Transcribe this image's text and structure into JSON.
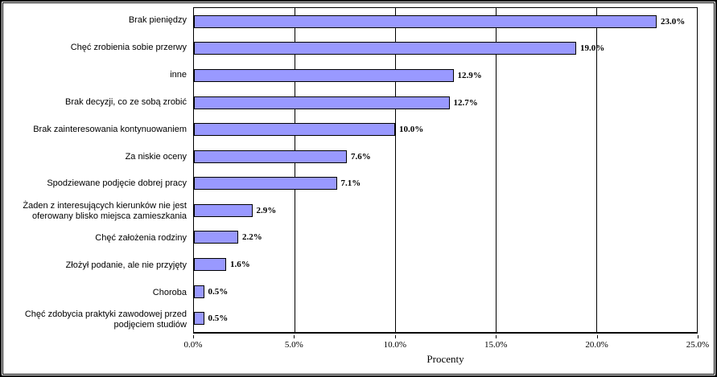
{
  "chart_data": {
    "type": "bar",
    "orientation": "horizontal",
    "title": "",
    "xlabel": "Procenty",
    "categories": [
      "Brak pieniędzy",
      "Chęć zrobienia sobie przerwy",
      "inne",
      "Brak decyzji, co ze sobą zrobić",
      "Brak zainteresowania kontynuowaniem",
      "Za niskie oceny",
      "Spodziewane podjęcie dobrej pracy",
      "Żaden z interesujących kierunków nie jest oferowany blisko miejsca zamieszkania",
      "Chęć założenia rodziny",
      "Złożył podanie, ale nie przyjęty",
      "Choroba",
      "Chęć zdobycia praktyki zawodowej przed podjęciem studiów"
    ],
    "values": [
      23.0,
      19.0,
      12.9,
      12.7,
      10.0,
      7.6,
      7.1,
      2.9,
      2.2,
      1.6,
      0.5,
      0.5
    ],
    "value_labels": [
      "23.0%",
      "19.0%",
      "12.9%",
      "12.7%",
      "10.0%",
      "7.6%",
      "7.1%",
      "2.9%",
      "2.2%",
      "1.6%",
      "0.5%",
      "0.5%"
    ],
    "xlim": [
      0,
      25
    ],
    "x_ticks": [
      {
        "value": 0,
        "label": "0.0%"
      },
      {
        "value": 5,
        "label": "5.0%"
      },
      {
        "value": 10,
        "label": "10.0%"
      },
      {
        "value": 15,
        "label": "15.0%"
      },
      {
        "value": 20,
        "label": "20.0%"
      },
      {
        "value": 25,
        "label": "25.0%"
      }
    ],
    "grid": true,
    "legend": false,
    "colors": {
      "bar_fill": "#9999FF",
      "bar_border": "#000000",
      "gridline": "#000000",
      "axis": "#000000",
      "background": "#FFFFFF",
      "frame_border": "#000000"
    }
  }
}
